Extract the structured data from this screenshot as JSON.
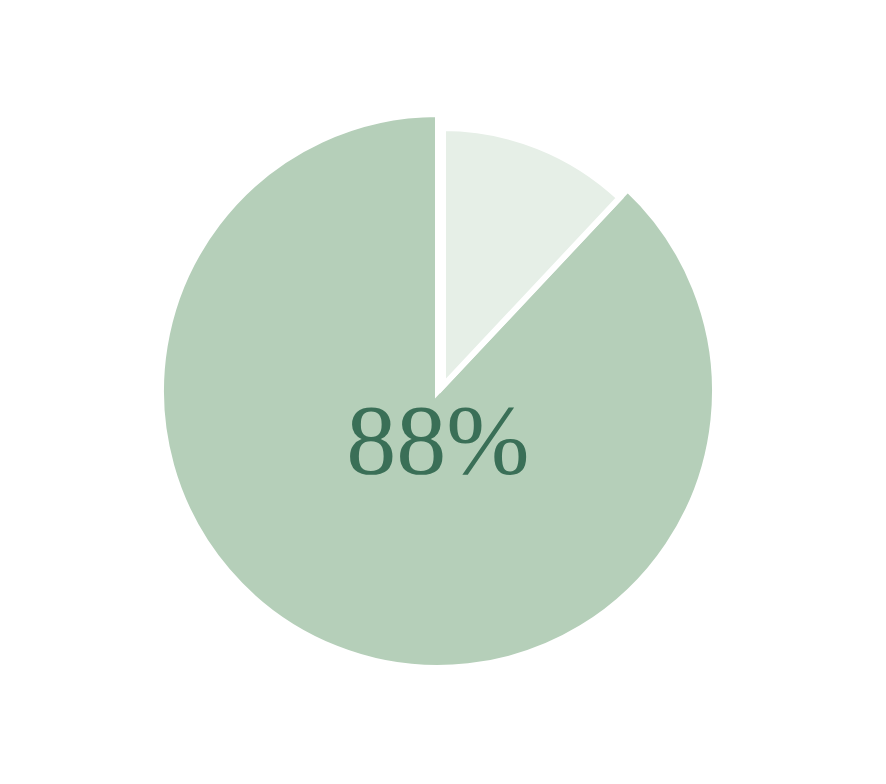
{
  "chart_data": {
    "type": "pie",
    "values": [
      88,
      12
    ],
    "colors": [
      "#b5cfb9",
      "#e6efe7"
    ],
    "center_label": "88%"
  }
}
